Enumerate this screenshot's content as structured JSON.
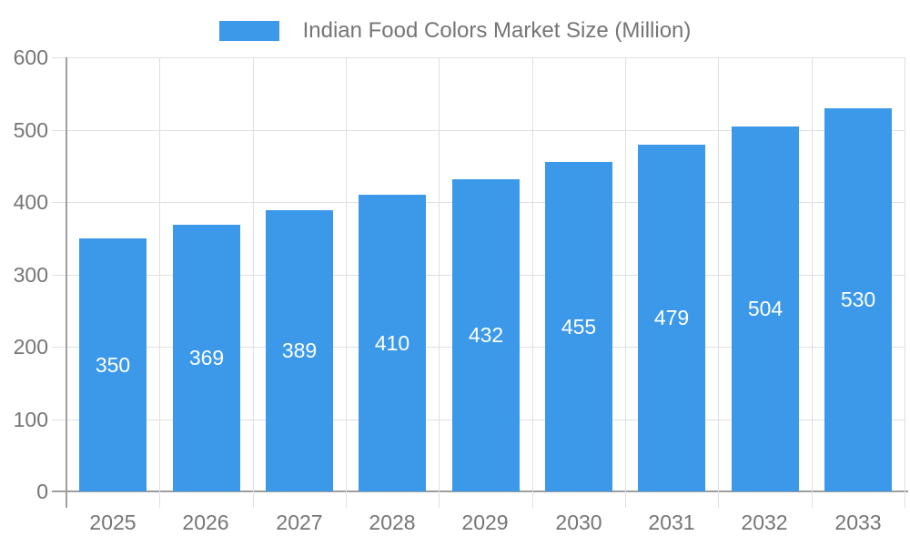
{
  "legend": {
    "label": "Indian Food Colors Market Size (Million)"
  },
  "chart_data": {
    "type": "bar",
    "title": "Indian Food Colors Market Size (Million)",
    "categories": [
      "2025",
      "2026",
      "2027",
      "2028",
      "2029",
      "2030",
      "2031",
      "2032",
      "2033"
    ],
    "values": [
      350,
      369,
      389,
      410,
      432,
      455,
      479,
      504,
      530
    ],
    "series": [
      {
        "name": "Indian Food Colors Market Size (Million)",
        "values": [
          350,
          369,
          389,
          410,
          432,
          455,
          479,
          504,
          530
        ]
      }
    ],
    "xlabel": "",
    "ylabel": "",
    "ylim": [
      0,
      600
    ],
    "yticks": [
      0,
      100,
      200,
      300,
      400,
      500,
      600
    ],
    "grid": true,
    "legend_position": "top",
    "value_labels": "inside-center",
    "colors": {
      "bar": "#3c99ea",
      "value_text": "#ffffff",
      "axis_text": "#757575",
      "axis_line": "#9e9e9e",
      "gridline": "#e0e0e0",
      "background": "#ffffff"
    }
  }
}
